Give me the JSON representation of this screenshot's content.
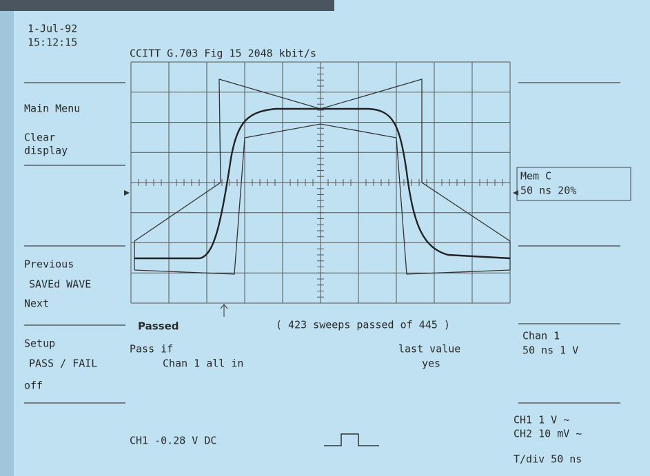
{
  "header": {
    "date": "1-Jul-92",
    "time": "15:12:15",
    "title": "CCITT G.703 Fig 15  2048 kbit/s"
  },
  "left_menu": [
    {
      "lines": [
        "Main Menu"
      ]
    },
    {
      "lines": [
        "Clear",
        "display"
      ]
    },
    {
      "lines": [
        "Previous",
        "SAVEd WAVE",
        "Next"
      ]
    },
    {
      "lines": [
        "Setup",
        "PASS / FAIL",
        "off"
      ]
    }
  ],
  "right_panel": {
    "memory": [
      "Mem C",
      "50 ns  20%"
    ],
    "channel": [
      "Chan 1",
      "50 ns   1 V"
    ],
    "inputs": [
      "CH1   1 V  ~",
      "CH2  10 mV  ~"
    ],
    "timebase": "T/div 50 ns"
  },
  "status": {
    "result": "Passed",
    "sweeps": "( 423 sweeps passed of 445 )",
    "condition": [
      "Pass if",
      "Chan 1 all in"
    ],
    "mode": [
      "last value",
      "yes"
    ],
    "offset": "CH1 -0.28  V   DC"
  }
}
